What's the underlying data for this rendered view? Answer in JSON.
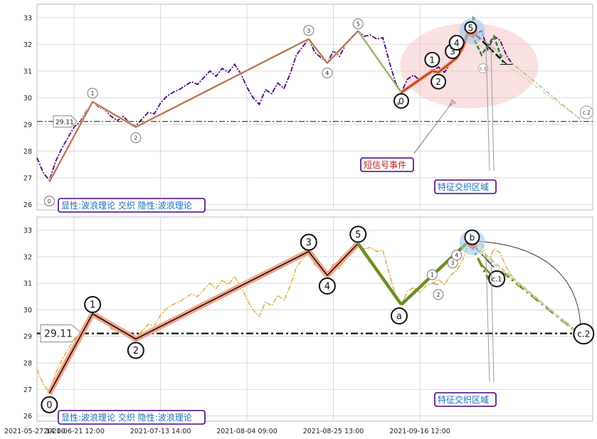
{
  "chart_data": [
    {
      "type": "line",
      "panel": "top",
      "ylim": [
        25.8,
        33.5
      ],
      "yticks": [
        26,
        27,
        28,
        29,
        30,
        31,
        32,
        33
      ],
      "grid": true,
      "price_color": "#4b0082",
      "reference_line": {
        "value": 29.11,
        "label": "29.11"
      },
      "price_series": [
        [
          0,
          27.75
        ],
        [
          2,
          27.2
        ],
        [
          4,
          26.9
        ],
        [
          6,
          27.6
        ],
        [
          8,
          28.1
        ],
        [
          10,
          28.5
        ],
        [
          12,
          28.9
        ],
        [
          14,
          29.1
        ],
        [
          16,
          29.5
        ],
        [
          18,
          29.85
        ],
        [
          20,
          29.65
        ],
        [
          22,
          29.55
        ],
        [
          24,
          29.3
        ],
        [
          26,
          29.15
        ],
        [
          28,
          29.3
        ],
        [
          30,
          29.05
        ],
        [
          32,
          28.95
        ],
        [
          34,
          29.2
        ],
        [
          36,
          29.45
        ],
        [
          38,
          29.4
        ],
        [
          40,
          29.8
        ],
        [
          42,
          30.05
        ],
        [
          44,
          30.2
        ],
        [
          46,
          30.3
        ],
        [
          48,
          30.45
        ],
        [
          50,
          30.6
        ],
        [
          52,
          30.5
        ],
        [
          54,
          30.75
        ],
        [
          56,
          31.0
        ],
        [
          58,
          30.8
        ],
        [
          60,
          31.1
        ],
        [
          62,
          30.95
        ],
        [
          64,
          31.25
        ],
        [
          66,
          30.9
        ],
        [
          68,
          30.4
        ],
        [
          70,
          30.0
        ],
        [
          72,
          29.75
        ],
        [
          74,
          30.3
        ],
        [
          76,
          30.15
        ],
        [
          78,
          30.55
        ],
        [
          80,
          30.35
        ],
        [
          82,
          30.9
        ],
        [
          84,
          31.6
        ],
        [
          86,
          31.9
        ],
        [
          88,
          32.2
        ],
        [
          90,
          31.7
        ],
        [
          92,
          31.5
        ],
        [
          94,
          31.3
        ],
        [
          96,
          31.75
        ],
        [
          98,
          31.55
        ],
        [
          100,
          32.0
        ],
        [
          102,
          32.3
        ],
        [
          104,
          32.5
        ],
        [
          106,
          32.3
        ],
        [
          108,
          32.35
        ],
        [
          110,
          32.2
        ],
        [
          112,
          32.25
        ],
        [
          114,
          31.4
        ],
        [
          116,
          30.6
        ],
        [
          118,
          30.2
        ],
        [
          120,
          30.7
        ],
        [
          122,
          30.85
        ],
        [
          124,
          30.65
        ],
        [
          126,
          30.9
        ],
        [
          128,
          31.0
        ],
        [
          130,
          31.15
        ],
        [
          132,
          30.95
        ],
        [
          134,
          31.3
        ],
        [
          136,
          31.5
        ],
        [
          138,
          31.9
        ],
        [
          140,
          32.6
        ],
        [
          142,
          32.4
        ],
        [
          144,
          32.5
        ],
        [
          146,
          31.8
        ],
        [
          148,
          32.3
        ],
        [
          150,
          32.15
        ],
        [
          152,
          31.6
        ],
        [
          154,
          31.25
        ]
      ],
      "wave_points": [
        {
          "label": "0",
          "x": 4,
          "y": 26.85
        },
        {
          "label": "1",
          "x": 18,
          "y": 29.85
        },
        {
          "label": "2",
          "x": 32,
          "y": 28.9
        },
        {
          "label": "3",
          "x": 88,
          "y": 32.2
        },
        {
          "label": "4",
          "x": 94,
          "y": 31.3
        },
        {
          "label": "5",
          "x": 104,
          "y": 32.5
        }
      ],
      "sub_wave_points": [
        {
          "label": "0",
          "x": 118,
          "y": 30.2
        },
        {
          "label": "1",
          "x": 128,
          "y": 31.0
        },
        {
          "label": "2",
          "x": 130,
          "y": 30.95
        },
        {
          "label": "3",
          "x": 136,
          "y": 31.5
        },
        {
          "label": "4",
          "x": 138,
          "y": 31.9
        },
        {
          "label": "5",
          "x": 140,
          "y": 32.6
        }
      ],
      "annotations": [
        {
          "text": "短信号事件",
          "color": "#b22222"
        },
        {
          "text": "特征交织区域",
          "color": "#1a6fb5"
        },
        {
          "text": "显性:波浪理论 交织 隐性:波浪理论",
          "color": "#1a6fb5"
        }
      ],
      "small_labels": [
        "a",
        "c.1",
        "c.2",
        "b"
      ]
    },
    {
      "type": "line",
      "panel": "bottom",
      "ylim": [
        25.8,
        33.5
      ],
      "yticks": [
        26,
        27,
        28,
        29,
        30,
        31,
        32,
        33
      ],
      "grid": true,
      "price_color": "#e8a93a",
      "reference_line": {
        "value": 29.11,
        "label": "29.11"
      },
      "wave_points": [
        {
          "label": "0",
          "x": 4,
          "y": 26.85
        },
        {
          "label": "1",
          "x": 18,
          "y": 29.85
        },
        {
          "label": "2",
          "x": 32,
          "y": 28.9
        },
        {
          "label": "3",
          "x": 88,
          "y": 32.2
        },
        {
          "label": "4",
          "x": 94,
          "y": 31.3
        },
        {
          "label": "5",
          "x": 104,
          "y": 32.5
        },
        {
          "label": "a",
          "x": 118,
          "y": 30.2
        },
        {
          "label": "b",
          "x": 140,
          "y": 32.6
        },
        {
          "label": "c.1",
          "x": 148,
          "y": 31.6
        },
        {
          "label": "c.2",
          "x": 175,
          "y": 29.15
        }
      ],
      "sub_wave_points": [
        {
          "label": "1",
          "x": 128,
          "y": 31.0
        },
        {
          "label": "2",
          "x": 130,
          "y": 30.95
        },
        {
          "label": "3",
          "x": 136,
          "y": 31.5
        },
        {
          "label": "4",
          "x": 138,
          "y": 31.9
        }
      ],
      "annotations": [
        {
          "text": "特征交织区域",
          "color": "#1a6fb5"
        },
        {
          "text": "显性:波浪理论 交织 隐性:波浪理论",
          "color": "#1a6fb5"
        }
      ]
    }
  ],
  "x_axis": {
    "xlim": [
      0,
      180
    ],
    "ticks": [
      {
        "x": -17,
        "label": "2021-05-27 14:00"
      },
      {
        "x": 12,
        "label": "2021-06-21 12:00"
      },
      {
        "x": 40,
        "label": "2021-07-13 14:00"
      },
      {
        "x": 68,
        "label": "2021-08-04 09:00"
      },
      {
        "x": 96,
        "label": "2021-08-25 13:00"
      },
      {
        "x": 124,
        "label": "2021-09-16 12:00"
      }
    ]
  }
}
